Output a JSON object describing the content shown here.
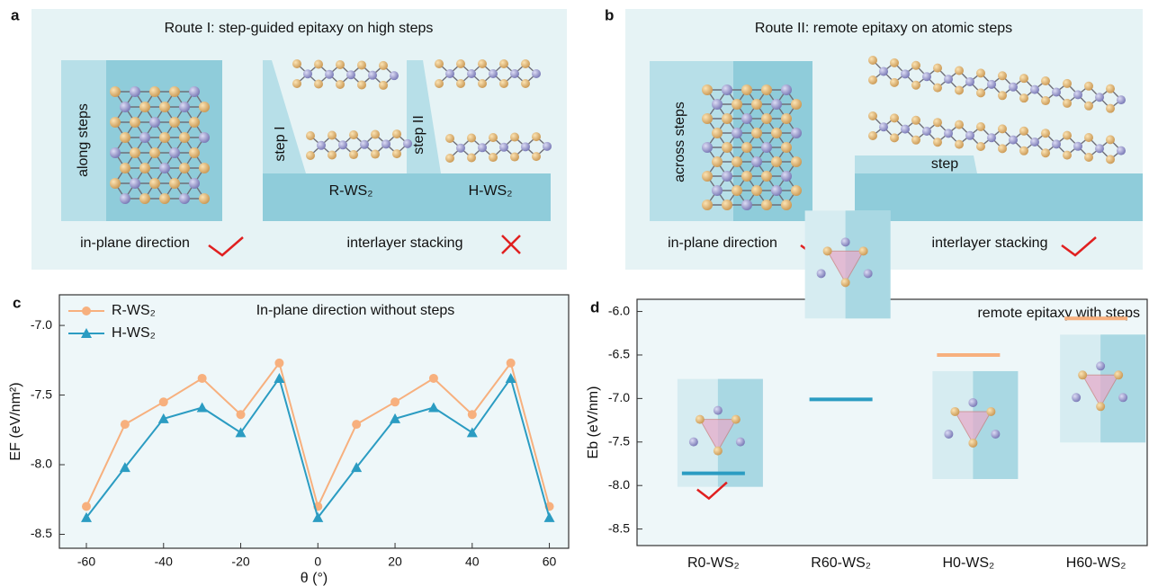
{
  "diagrams": {
    "a": {
      "label": "a",
      "title": "Route I: step-guided epitaxy on high steps",
      "strip_label": "along steps",
      "step1": "step I",
      "step2": "step II",
      "left_stack": "R-WS₂",
      "right_stack": "H-WS₂",
      "criterion1": "in-plane direction",
      "criterion2": "interlayer stacking"
    },
    "b": {
      "label": "b",
      "title": "Route II: remote epitaxy on atomic steps",
      "strip_label": "across steps",
      "step": "step",
      "criterion1": "in-plane direction",
      "criterion2": "interlayer stacking"
    }
  },
  "chart_data": [
    {
      "type": "line",
      "panel_label": "c",
      "title": "In-plane direction without steps",
      "xlabel": "θ (°)",
      "ylabel": "EF (eV/nm²)",
      "x": [
        -60,
        -50,
        -40,
        -30,
        -20,
        -10,
        0,
        10,
        20,
        30,
        40,
        50,
        60
      ],
      "xlim": [
        -67,
        65
      ],
      "xticks": [
        -60,
        -40,
        -20,
        0,
        20,
        40,
        60
      ],
      "ylim": [
        -8.6,
        -6.78
      ],
      "yticks": [
        {
          "value": -7,
          "label": "-7.0"
        },
        -7.5,
        {
          "value": -8,
          "label": "-8.0"
        },
        -8.5
      ],
      "legend": "upper left",
      "series": [
        {
          "name": "R-WS₂",
          "color": "#f7b07e",
          "marker": "circle",
          "values": [
            -8.3,
            -7.71,
            -7.55,
            -7.38,
            -7.64,
            -7.27,
            -8.3,
            -7.71,
            -7.55,
            -7.38,
            -7.64,
            -7.27,
            -8.3
          ]
        },
        {
          "name": "H-WS₂",
          "color": "#2b9cc2",
          "marker": "triangle",
          "values": [
            -8.38,
            -8.02,
            -7.67,
            -7.59,
            -7.77,
            -7.38,
            -8.38,
            -8.02,
            -7.67,
            -7.59,
            -7.77,
            -7.38,
            -8.38
          ]
        }
      ]
    },
    {
      "type": "level",
      "panel_label": "d",
      "title": "remote epitaxy with steps",
      "ylabel": "Eb (eV/nm)",
      "categories": [
        "R0-WS₂",
        "R60-WS₂",
        "H0-WS₂",
        "H60-WS₂"
      ],
      "colors": [
        "#2b9cc2",
        "#2b9cc2",
        "#f7b07e",
        "#f7b07e"
      ],
      "values": [
        -7.86,
        -7.01,
        -6.5,
        -6.08
      ],
      "ylim": [
        -8.69,
        -5.86
      ],
      "yticks": [
        {
          "value": -6,
          "label": "-6.0"
        },
        -6.5,
        {
          "value": -7,
          "label": "-7.0"
        },
        -7.5,
        {
          "value": -8,
          "label": "-8.0"
        },
        -8.5
      ]
    }
  ]
}
